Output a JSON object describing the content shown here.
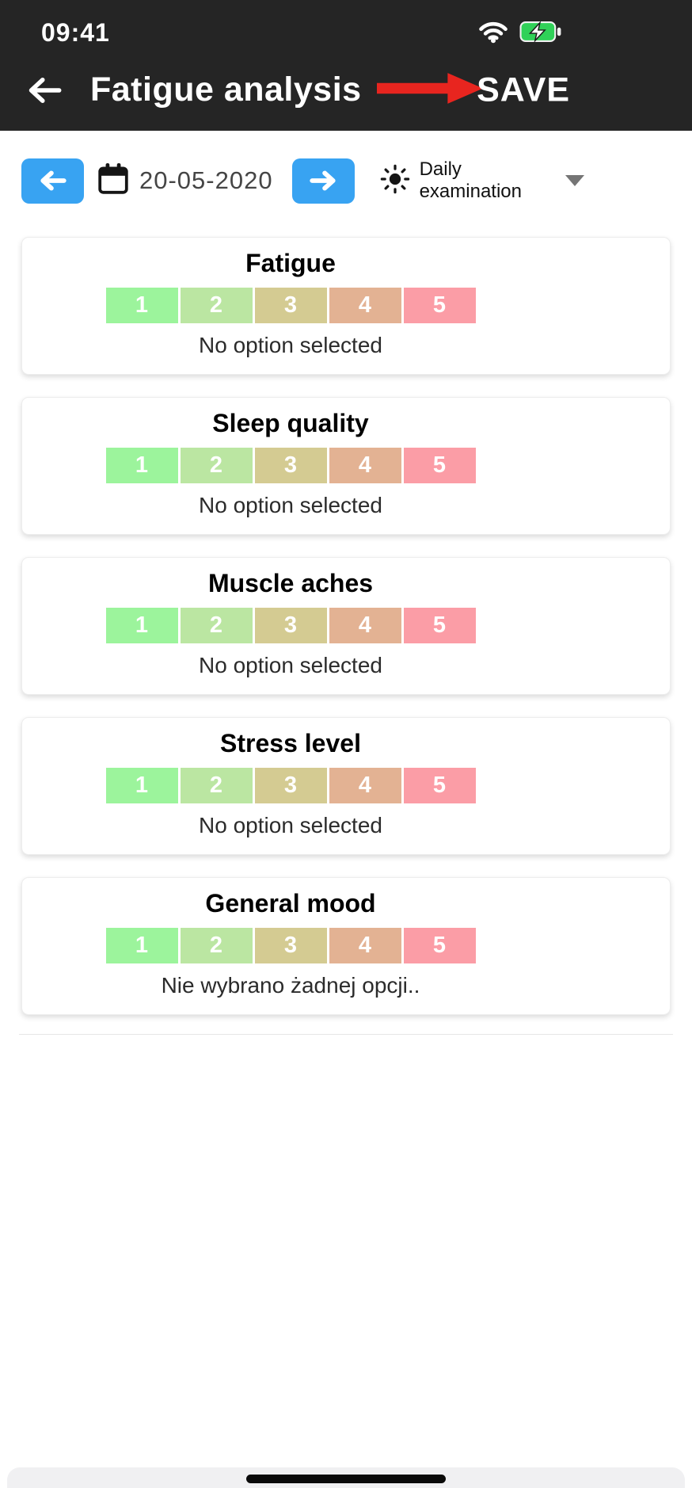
{
  "status_bar": {
    "time": "09:41",
    "wifi_icon": "wifi-icon",
    "battery_icon": "battery-charging-icon"
  },
  "header": {
    "back_icon": "arrow-left-icon",
    "title": "Fatigue analysis",
    "save_label": "SAVE",
    "annotation_icon": "red-arrow-annotation"
  },
  "toolbar": {
    "prev_icon": "arrow-left-icon",
    "next_icon": "arrow-right-icon",
    "calendar_icon": "calendar-icon",
    "date": "20-05-2020",
    "examination_select": {
      "icon": "sun-icon",
      "value": "Daily examination",
      "chevron_icon": "chevron-down-icon"
    }
  },
  "rating_scale": [
    "1",
    "2",
    "3",
    "4",
    "5"
  ],
  "cards": [
    {
      "title": "Fatigue",
      "status": "No option selected"
    },
    {
      "title": "Sleep quality",
      "status": "No option selected"
    },
    {
      "title": "Muscle aches",
      "status": "No option selected"
    },
    {
      "title": "Stress level",
      "status": "No option selected"
    },
    {
      "title": "General mood",
      "status": "Nie wybrano żadnej opcji.."
    }
  ],
  "colors": {
    "accent_blue": "#38a3f2",
    "header_bg": "#252525",
    "annotation_red": "#e8251f",
    "battery_green": "#30d158",
    "rating": [
      "#9cf49c",
      "#bbe6a2",
      "#d4cb92",
      "#e3b293",
      "#fb9da6"
    ]
  }
}
